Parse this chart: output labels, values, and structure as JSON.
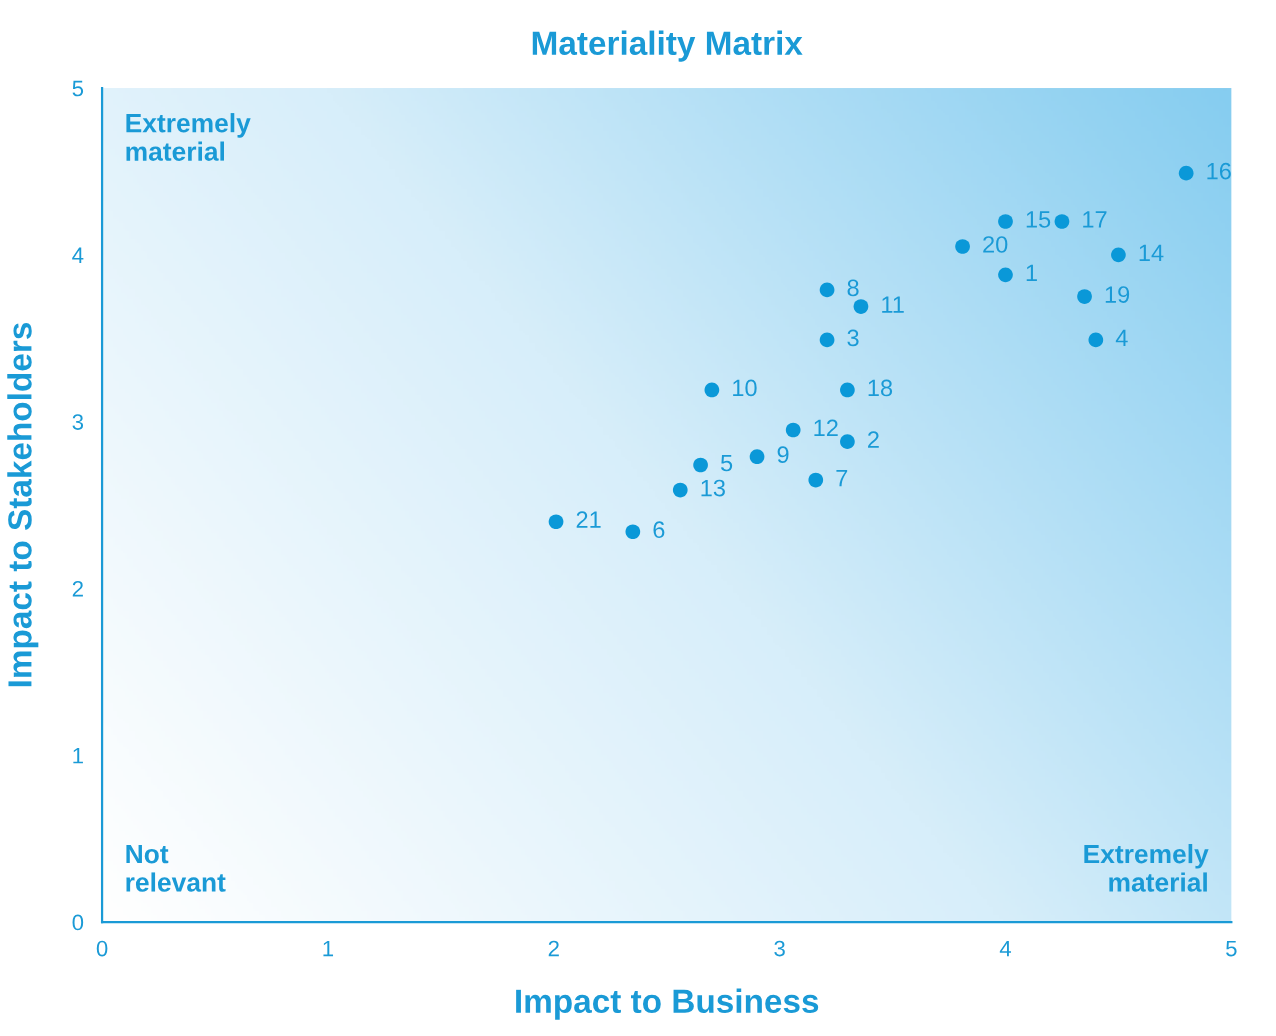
{
  "chart_data": {
    "type": "scatter",
    "title": "Materiality Matrix",
    "xlabel": "Impact to Business",
    "ylabel": "Impact to Stakeholders",
    "xlim": [
      0,
      5
    ],
    "ylim": [
      0,
      5
    ],
    "xticks": [
      0,
      1,
      2,
      3,
      4,
      5
    ],
    "yticks": [
      0,
      1,
      2,
      3,
      4,
      5
    ],
    "grid": false,
    "marker": "circle",
    "series": [
      {
        "color": "#0a98d8",
        "x": [
          4.0,
          3.3,
          3.21,
          4.4,
          2.65,
          2.35,
          3.16,
          3.21,
          2.9,
          2.7,
          3.36,
          3.06,
          2.56,
          4.5,
          4.0,
          4.8,
          4.25,
          3.3,
          4.35,
          3.81,
          2.01
        ],
        "values": [
          3.88,
          2.88,
          3.49,
          3.49,
          2.74,
          2.34,
          2.65,
          3.79,
          2.79,
          3.19,
          3.69,
          2.95,
          2.59,
          4.0,
          4.2,
          4.49,
          4.2,
          3.19,
          3.75,
          4.05,
          2.4
        ]
      }
    ],
    "annotations": [
      "Extremely\nmaterial",
      "Not\nrelevant",
      "Extremely\nmaterial",
      {
        "text": "1",
        "x": 4.0,
        "y": 3.88
      },
      {
        "text": "2",
        "x": 3.3,
        "y": 2.88
      },
      {
        "text": "3",
        "x": 3.21,
        "y": 3.49
      },
      {
        "text": "4",
        "x": 4.4,
        "y": 3.49
      },
      {
        "text": "5",
        "x": 2.65,
        "y": 2.74
      },
      {
        "text": "6",
        "x": 2.35,
        "y": 2.34
      },
      {
        "text": "7",
        "x": 3.16,
        "y": 2.65
      },
      {
        "text": "8",
        "x": 3.21,
        "y": 3.79
      },
      {
        "text": "9",
        "x": 2.9,
        "y": 2.79
      },
      {
        "text": "10",
        "x": 2.7,
        "y": 3.19
      },
      {
        "text": "11",
        "x": 3.36,
        "y": 3.69
      },
      {
        "text": "12",
        "x": 3.06,
        "y": 2.95
      },
      {
        "text": "13",
        "x": 2.56,
        "y": 2.59
      },
      {
        "text": "14",
        "x": 4.5,
        "y": 4.0
      },
      {
        "text": "15",
        "x": 4.0,
        "y": 4.2
      },
      {
        "text": "16",
        "x": 4.8,
        "y": 4.49
      },
      {
        "text": "17",
        "x": 4.25,
        "y": 4.2
      },
      {
        "text": "18",
        "x": 3.3,
        "y": 3.19
      },
      {
        "text": "19",
        "x": 4.35,
        "y": 3.75
      },
      {
        "text": "20",
        "x": 3.81,
        "y": 4.05
      },
      {
        "text": "21",
        "x": 2.01,
        "y": 2.4
      }
    ]
  }
}
